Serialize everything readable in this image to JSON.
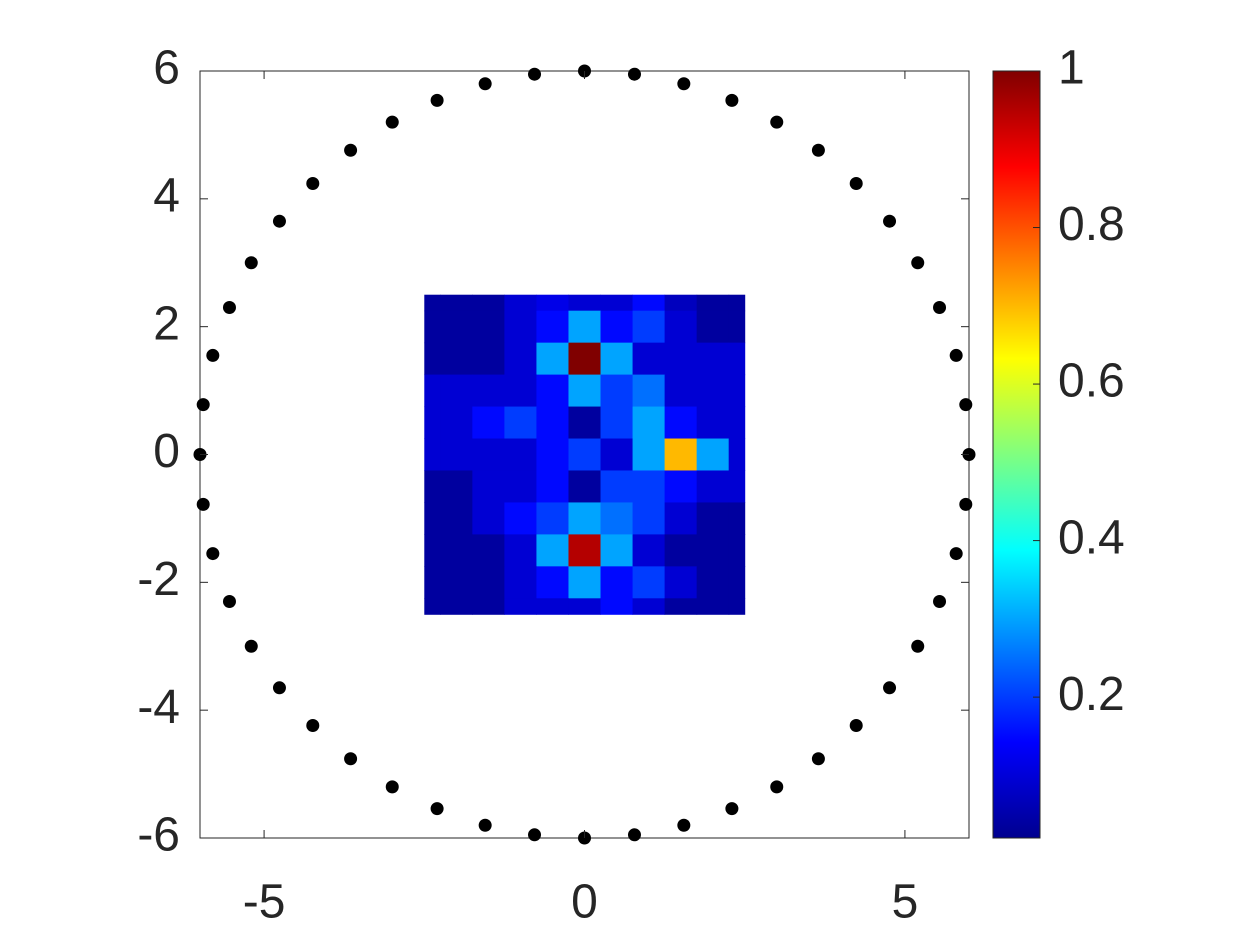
{
  "chart_data": {
    "type": "scatter",
    "xlim": [
      -6,
      6
    ],
    "ylim": [
      -6,
      6
    ],
    "xticks": [
      -5,
      0,
      5
    ],
    "yticks": [
      -6,
      -4,
      -2,
      0,
      2,
      4,
      6
    ],
    "series": [
      {
        "color": "#000000",
        "x": [
          0,
          0.78,
          1.55,
          2.3,
          3,
          3.65,
          4.24,
          4.76,
          5.2,
          5.54,
          5.8,
          5.95,
          6,
          5.95,
          5.8,
          5.54,
          5.2,
          4.76,
          4.24,
          3.65,
          3,
          2.3,
          1.55,
          0.78,
          0,
          -0.78,
          -1.55,
          -2.3,
          -3,
          -3.65,
          -4.24,
          -4.76,
          -5.2,
          -5.54,
          -5.8,
          -5.95,
          -6,
          -5.95,
          -5.8,
          -5.54,
          -5.2,
          -4.76,
          -4.24,
          -3.65,
          -3,
          -2.3,
          -1.55,
          -0.78
        ],
        "y": [
          6,
          5.95,
          5.8,
          5.54,
          5.2,
          4.76,
          4.24,
          3.65,
          3,
          2.3,
          1.55,
          0.78,
          0,
          -0.78,
          -1.55,
          -2.3,
          -3,
          -3.65,
          -4.24,
          -4.76,
          -5.2,
          -5.54,
          -5.8,
          -5.95,
          -6,
          -5.95,
          -5.8,
          -5.54,
          -5.2,
          -4.76,
          -4.24,
          -3.65,
          -3,
          -2.3,
          -1.55,
          -0.78,
          0,
          0.78,
          1.55,
          2.3,
          3,
          3.65,
          4.24,
          4.76,
          5.2,
          5.54,
          5.8,
          5.95
        ]
      }
    ],
    "field": {
      "x": [
        -2.5,
        -2,
        -1.5,
        -1,
        -0.5,
        0,
        0.5,
        1,
        1.5,
        2,
        2.5
      ],
      "y": [
        2.5,
        2,
        1.5,
        1,
        0.5,
        0,
        -0.5,
        -1,
        -1.5,
        -2,
        -2.5
      ],
      "z": [
        [
          0.05,
          0.05,
          0.05,
          0.1,
          0.12,
          0.1,
          0.1,
          0.15,
          0.08,
          0.05,
          0.05
        ],
        [
          0.05,
          0.05,
          0.05,
          0.1,
          0.15,
          0.3,
          0.15,
          0.2,
          0.1,
          0.05,
          0.05
        ],
        [
          0.05,
          0.05,
          0.05,
          0.1,
          0.3,
          1,
          0.3,
          0.1,
          0.1,
          0.1,
          0.1
        ],
        [
          0.1,
          0.1,
          0.1,
          0.1,
          0.15,
          0.3,
          0.2,
          0.25,
          0.1,
          0.1,
          0.1
        ],
        [
          0.1,
          0.1,
          0.15,
          0.2,
          0.15,
          0.05,
          0.2,
          0.3,
          0.15,
          0.1,
          0.1
        ],
        [
          0.1,
          0.1,
          0.1,
          0.1,
          0.15,
          0.2,
          0.1,
          0.3,
          0.7,
          0.3,
          0.1
        ],
        [
          0.05,
          0.05,
          0.1,
          0.1,
          0.15,
          0.05,
          0.2,
          0.2,
          0.15,
          0.1,
          0.1
        ],
        [
          0.05,
          0.05,
          0.1,
          0.15,
          0.2,
          0.3,
          0.25,
          0.2,
          0.1,
          0.05,
          0.05
        ],
        [
          0.05,
          0.05,
          0.05,
          0.1,
          0.3,
          0.95,
          0.3,
          0.1,
          0.05,
          0.05,
          0.05
        ],
        [
          0.05,
          0.05,
          0.05,
          0.1,
          0.15,
          0.3,
          0.15,
          0.2,
          0.1,
          0.05,
          0.05
        ],
        [
          0.05,
          0.05,
          0.05,
          0.1,
          0.1,
          0.1,
          0.15,
          0.1,
          0.05,
          0.05,
          0.05
        ]
      ]
    },
    "colorbar": {
      "colormap": "jet",
      "clim": [
        0.02,
        1
      ],
      "ticks": [
        0.2,
        0.4,
        0.6,
        0.8,
        1
      ]
    }
  }
}
